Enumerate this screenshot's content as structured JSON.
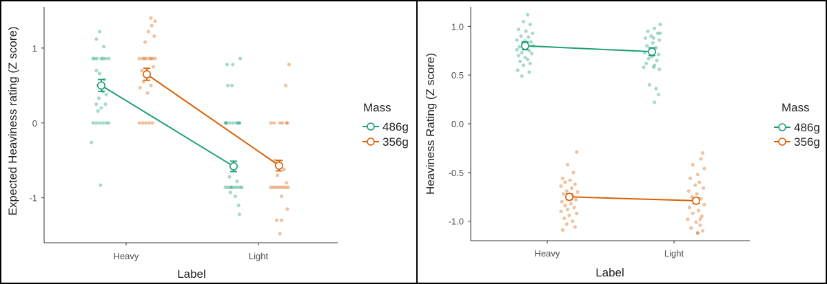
{
  "colors": {
    "series_486": "#1b9e77",
    "series_356": "#d95f02",
    "axis": "#333333",
    "tick_text": "#4d4d4d",
    "frame": "#000000"
  },
  "chart_data": [
    {
      "type": "scatter",
      "title": "",
      "xlabel": "Label",
      "ylabel": "Expected Heaviness rating (Z score)",
      "categories": [
        "Heavy",
        "Light"
      ],
      "ylim": [
        -1.6,
        1.55
      ],
      "yticks": [
        1,
        0,
        -1
      ],
      "ytick_labels": [
        "1",
        "0",
        "-1"
      ],
      "legend": {
        "title": "Mass",
        "position": "right",
        "entries": [
          "486g",
          "356g"
        ]
      },
      "series": [
        {
          "name": "486g",
          "means": [
            0.5,
            -0.58
          ],
          "errors": [
            0.08,
            0.07
          ],
          "points": [
            [
              -0.02,
              1.22
            ],
            [
              -0.06,
              1.12
            ],
            [
              0.03,
              1.02
            ],
            [
              -0.1,
              0.86
            ],
            [
              -0.05,
              0.86
            ],
            [
              0.0,
              0.86
            ],
            [
              0.05,
              0.86
            ],
            [
              0.09,
              0.86
            ],
            [
              -0.08,
              0.86
            ],
            [
              0.02,
              0.86
            ],
            [
              -0.06,
              0.7
            ],
            [
              -0.02,
              0.66
            ],
            [
              0.04,
              0.58
            ],
            [
              -0.04,
              0.5
            ],
            [
              0.02,
              0.42
            ],
            [
              0.06,
              0.38
            ],
            [
              -0.03,
              0.33
            ],
            [
              -0.06,
              0.25
            ],
            [
              0.05,
              0.25
            ],
            [
              0.0,
              0.2
            ],
            [
              -0.04,
              0.16
            ],
            [
              -0.1,
              0.0
            ],
            [
              -0.06,
              0.0
            ],
            [
              -0.02,
              0.0
            ],
            [
              0.02,
              0.0
            ],
            [
              0.06,
              0.0
            ],
            [
              0.09,
              0.0
            ],
            [
              -0.12,
              -0.26
            ],
            [
              -0.01,
              -0.83
            ],
            [
              -0.08,
              0.78
            ],
            [
              -0.02,
              0.5
            ],
            [
              -0.09,
              0.0
            ],
            [
              0.07,
              0.0
            ],
            [
              0.05,
              0.0
            ],
            [
              -0.1,
              0.0
            ],
            [
              0.08,
              0.86
            ],
            [
              -0.01,
              0.78
            ],
            [
              -0.07,
              0.5
            ],
            [
              -0.09,
              0.0
            ],
            [
              -0.05,
              0.0
            ],
            [
              -0.01,
              0.0
            ],
            [
              0.03,
              0.0
            ],
            [
              0.07,
              0.0
            ],
            [
              -0.1,
              -0.86
            ],
            [
              -0.07,
              -0.86
            ],
            [
              -0.04,
              -0.86
            ],
            [
              -0.01,
              -0.86
            ],
            [
              0.02,
              -0.86
            ],
            [
              0.05,
              -0.86
            ],
            [
              0.08,
              -0.86
            ],
            [
              0.1,
              -0.86
            ],
            [
              -0.03,
              -0.86
            ],
            [
              -0.04,
              -0.93
            ],
            [
              0.02,
              -0.98
            ],
            [
              0.06,
              -1.1
            ],
            [
              0.07,
              -1.22
            ],
            [
              -0.05,
              -0.72
            ],
            [
              0.04,
              -0.78
            ]
          ]
        },
        {
          "name": "356g",
          "means": [
            0.65,
            -0.57
          ],
          "errors": [
            0.08,
            0.07
          ],
          "points": [
            [
              0.05,
              1.4
            ],
            [
              0.1,
              1.36
            ],
            [
              0.06,
              1.3
            ],
            [
              0.02,
              1.22
            ],
            [
              0.09,
              1.16
            ],
            [
              -0.02,
              1.08
            ],
            [
              -0.09,
              0.86
            ],
            [
              -0.05,
              0.86
            ],
            [
              -0.01,
              0.86
            ],
            [
              0.03,
              0.86
            ],
            [
              0.07,
              0.86
            ],
            [
              0.1,
              0.86
            ],
            [
              -0.03,
              0.86
            ],
            [
              0.05,
              0.86
            ],
            [
              0.08,
              0.75
            ],
            [
              -0.06,
              0.7
            ],
            [
              0.02,
              0.62
            ],
            [
              -0.04,
              0.55
            ],
            [
              0.05,
              0.5
            ],
            [
              -0.08,
              0.47
            ],
            [
              0.01,
              0.4
            ],
            [
              -0.09,
              0.0
            ],
            [
              -0.05,
              0.0
            ],
            [
              -0.01,
              0.0
            ],
            [
              0.03,
              0.0
            ],
            [
              0.07,
              0.0
            ],
            [
              0.1,
              0.0
            ],
            [
              0.03,
              -1.3
            ],
            [
              0.04,
              0.0
            ],
            [
              -0.06,
              0.0
            ],
            [
              0.01,
              0.0
            ],
            [
              0.09,
              0.0
            ],
            [
              -0.1,
              0.0
            ],
            [
              0.12,
              0.78
            ],
            [
              0.08,
              0.5
            ],
            [
              -0.1,
              -0.86
            ],
            [
              -0.07,
              -0.86
            ],
            [
              -0.04,
              -0.86
            ],
            [
              -0.01,
              -0.86
            ],
            [
              0.02,
              -0.86
            ],
            [
              0.05,
              -0.86
            ],
            [
              0.08,
              -0.86
            ],
            [
              0.11,
              -0.86
            ],
            [
              -0.05,
              -0.5
            ],
            [
              0.06,
              -0.62
            ],
            [
              -0.02,
              -0.7
            ],
            [
              0.03,
              -0.98
            ],
            [
              0.1,
              -1.15
            ],
            [
              -0.03,
              -1.3
            ],
            [
              0.01,
              -1.48
            ],
            [
              0.09,
              -0.8
            ]
          ]
        }
      ]
    },
    {
      "type": "scatter",
      "title": "",
      "xlabel": "Label",
      "ylabel": "Heaviness Rating (Z score)",
      "categories": [
        "Heavy",
        "Light"
      ],
      "ylim": [
        -1.2,
        1.2
      ],
      "yticks": [
        1.0,
        0.5,
        0.0,
        -0.5,
        -1.0
      ],
      "ytick_labels": [
        "1.0",
        "0.5",
        "0.0",
        "-0.5",
        "-1.0"
      ],
      "legend": {
        "title": "Mass",
        "position": "right",
        "entries": [
          "486g",
          "356g"
        ]
      },
      "series": [
        {
          "name": "486g",
          "means": [
            0.8,
            0.74
          ],
          "errors": [
            0.04,
            0.04
          ],
          "points": [
            [
              0.03,
              1.12
            ],
            [
              -0.02,
              1.05
            ],
            [
              0.06,
              1.02
            ],
            [
              -0.08,
              0.97
            ],
            [
              0.01,
              0.95
            ],
            [
              0.09,
              0.93
            ],
            [
              -0.05,
              0.9
            ],
            [
              0.04,
              0.89
            ],
            [
              -0.1,
              0.86
            ],
            [
              0.0,
              0.85
            ],
            [
              0.07,
              0.84
            ],
            [
              -0.03,
              0.83
            ],
            [
              0.1,
              0.8
            ],
            [
              -0.07,
              0.79
            ],
            [
              0.02,
              0.78
            ],
            [
              -0.1,
              0.76
            ],
            [
              0.05,
              0.75
            ],
            [
              -0.04,
              0.73
            ],
            [
              0.08,
              0.72
            ],
            [
              -0.08,
              0.7
            ],
            [
              0.0,
              0.68
            ],
            [
              0.03,
              0.66
            ],
            [
              -0.06,
              0.64
            ],
            [
              0.06,
              0.62
            ],
            [
              -0.02,
              0.6
            ],
            [
              -0.09,
              0.55
            ],
            [
              0.05,
              0.53
            ],
            [
              -0.04,
              0.49
            ],
            [
              0.1,
              0.93
            ],
            [
              0.02,
              0.58
            ],
            [
              0.1,
              1.02
            ],
            [
              0.03,
              0.98
            ],
            [
              -0.05,
              0.95
            ],
            [
              0.07,
              0.93
            ],
            [
              -0.01,
              0.9
            ],
            [
              -0.08,
              0.88
            ],
            [
              0.09,
              0.86
            ],
            [
              0.01,
              0.83
            ],
            [
              -0.06,
              0.8
            ],
            [
              0.05,
              0.78
            ],
            [
              -0.02,
              0.76
            ],
            [
              -0.09,
              0.73
            ],
            [
              0.08,
              0.71
            ],
            [
              0.0,
              0.69
            ],
            [
              -0.04,
              0.67
            ],
            [
              0.06,
              0.65
            ],
            [
              -0.07,
              0.62
            ],
            [
              0.03,
              0.6
            ],
            [
              -0.1,
              0.58
            ],
            [
              0.09,
              0.56
            ],
            [
              -0.03,
              0.4
            ],
            [
              0.05,
              0.36
            ],
            [
              0.08,
              0.3
            ],
            [
              0.03,
              0.22
            ],
            [
              0.02,
              0.88
            ]
          ]
        },
        {
          "name": "356g",
          "means": [
            -0.75,
            -0.79
          ],
          "errors": [
            0.03,
            0.03
          ],
          "points": [
            [
              0.09,
              -0.29
            ],
            [
              -0.02,
              -0.42
            ],
            [
              0.05,
              -0.5
            ],
            [
              -0.08,
              -0.56
            ],
            [
              0.01,
              -0.58
            ],
            [
              -0.05,
              -0.6
            ],
            [
              0.07,
              -0.62
            ],
            [
              -0.1,
              -0.64
            ],
            [
              0.03,
              -0.66
            ],
            [
              -0.03,
              -0.69
            ],
            [
              0.1,
              -0.7
            ],
            [
              -0.07,
              -0.72
            ],
            [
              0.04,
              -0.74
            ],
            [
              -0.01,
              -0.76
            ],
            [
              0.08,
              -0.78
            ],
            [
              -0.09,
              -0.8
            ],
            [
              0.02,
              -0.82
            ],
            [
              -0.05,
              -0.84
            ],
            [
              0.06,
              -0.86
            ],
            [
              -0.02,
              -0.88
            ],
            [
              -0.1,
              -0.9
            ],
            [
              0.09,
              -0.92
            ],
            [
              0.0,
              -0.94
            ],
            [
              -0.06,
              -0.97
            ],
            [
              0.04,
              -1.0
            ],
            [
              -0.03,
              -1.03
            ],
            [
              0.07,
              -1.06
            ],
            [
              -0.08,
              -1.09
            ],
            [
              0.02,
              -1.12
            ],
            [
              0.05,
              -0.98
            ],
            [
              0.08,
              -0.3
            ],
            [
              0.06,
              -0.36
            ],
            [
              -0.04,
              -0.42
            ],
            [
              0.1,
              -0.46
            ],
            [
              0.02,
              -0.52
            ],
            [
              -0.07,
              -0.56
            ],
            [
              0.04,
              -0.6
            ],
            [
              -0.01,
              -0.63
            ],
            [
              0.09,
              -0.66
            ],
            [
              -0.09,
              -0.69
            ],
            [
              0.01,
              -0.72
            ],
            [
              -0.05,
              -0.75
            ],
            [
              0.06,
              -0.77
            ],
            [
              -0.02,
              -0.8
            ],
            [
              0.1,
              -0.83
            ],
            [
              -0.08,
              -0.86
            ],
            [
              0.03,
              -0.89
            ],
            [
              -0.04,
              -0.92
            ],
            [
              0.07,
              -0.95
            ],
            [
              -0.1,
              -0.98
            ],
            [
              0.0,
              -1.01
            ],
            [
              0.05,
              -1.04
            ],
            [
              -0.06,
              -1.07
            ],
            [
              0.08,
              -1.1
            ],
            [
              0.02,
              -1.12
            ]
          ]
        }
      ]
    }
  ]
}
